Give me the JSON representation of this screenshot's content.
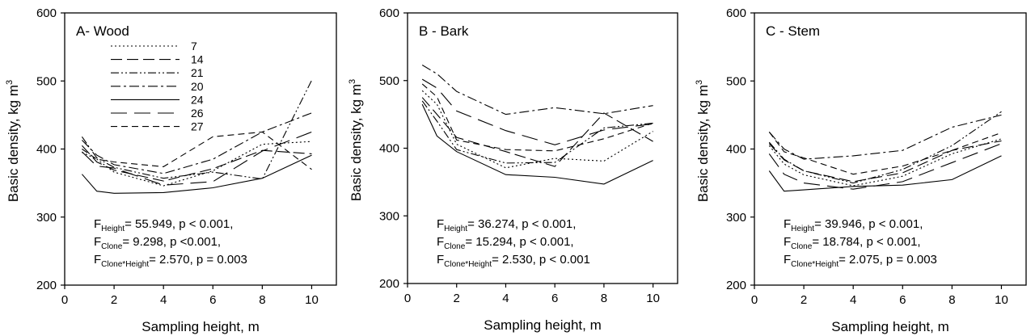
{
  "chart_data": [
    {
      "type": "line",
      "title": "A- Wood",
      "xlabel": "Sampling height, m",
      "ylabel": "Basic density, kg m",
      "ylabel_sup": "3",
      "xlim": [
        0,
        11
      ],
      "ylim": [
        200,
        600
      ],
      "xticks": [
        "0",
        "2",
        "4",
        "6",
        "8",
        "10"
      ],
      "yticks": [
        "200",
        "300",
        "400",
        "500",
        "600"
      ],
      "legend": "top-left",
      "stats": [
        {
          "pre": "F",
          "sub": "Height",
          "post": "= 55.949, p < 0.001,"
        },
        {
          "pre": "F",
          "sub": "Clone",
          "post": "= 9.298, p  <0.001,"
        },
        {
          "pre": "F",
          "sub": "Clone*Height",
          "post": "= 2.570, p = 0.003"
        }
      ],
      "x": [
        0.7,
        1.3,
        2,
        4,
        6,
        8,
        10
      ],
      "series": [
        {
          "name": "7",
          "values": [
            395,
            385,
            366,
            346,
            368,
            407,
            411
          ]
        },
        {
          "name": "14",
          "values": [
            405,
            381,
            369,
            353,
            371,
            398,
            393
          ]
        },
        {
          "name": "21",
          "values": [
            418,
            387,
            373,
            357,
            366,
            356,
            501
          ]
        },
        {
          "name": "20",
          "values": [
            413,
            391,
            377,
            364,
            385,
            425,
            453
          ]
        },
        {
          "name": "24",
          "values": [
            363,
            338,
            335,
            336,
            343,
            357,
            391
          ]
        },
        {
          "name": "26",
          "values": [
            396,
            375,
            372,
            347,
            352,
            397,
            425
          ]
        },
        {
          "name": "27",
          "values": [
            400,
            385,
            381,
            374,
            418,
            425,
            370
          ]
        }
      ]
    },
    {
      "type": "line",
      "title": "B - Bark",
      "xlabel": "Sampling height, m",
      "ylabel": "Basic density, kg m",
      "ylabel_sup": "3",
      "xlim": [
        0,
        11
      ],
      "ylim": [
        200,
        600
      ],
      "xticks": [
        "0",
        "2",
        "4",
        "6",
        "8",
        "10"
      ],
      "yticks": [
        "200",
        "300",
        "400",
        "500",
        "600"
      ],
      "stats": [
        {
          "pre": "F",
          "sub": "Height",
          "post": "= 36.274, p < 0.001,"
        },
        {
          "pre": "F",
          "sub": "Clone",
          "post": "= 15.294, p < 0.001,"
        },
        {
          "pre": "F",
          "sub": "Clone*Height",
          "post": "= 2.530, p < 0.001"
        }
      ],
      "x": [
        0.6,
        1.2,
        2,
        4,
        6,
        8,
        10
      ],
      "series": [
        {
          "name": "7",
          "values": [
            485,
            465,
            406,
            371,
            385,
            381,
            425
          ]
        },
        {
          "name": "14",
          "values": [
            475,
            450,
            416,
            395,
            373,
            452,
            410
          ]
        },
        {
          "name": "21",
          "values": [
            470,
            440,
            398,
            378,
            379,
            430,
            437
          ]
        },
        {
          "name": "20",
          "values": [
            523,
            510,
            484,
            450,
            460,
            451,
            463
          ]
        },
        {
          "name": "24",
          "values": [
            465,
            418,
            395,
            361,
            357,
            347,
            382
          ]
        },
        {
          "name": "26",
          "values": [
            502,
            489,
            455,
            426,
            405,
            427,
            436
          ]
        },
        {
          "name": "27",
          "values": [
            495,
            476,
            412,
            398,
            396,
            414,
            437
          ]
        }
      ]
    },
    {
      "type": "line",
      "title": "C - Stem",
      "xlabel": "Sampling height, m",
      "ylabel": "Basic density, kg m",
      "ylabel_sup": "3",
      "xlim": [
        0,
        11
      ],
      "ylim": [
        200,
        600
      ],
      "xticks": [
        "0",
        "2",
        "4",
        "6",
        "8",
        "10"
      ],
      "yticks": [
        "200",
        "300",
        "400",
        "500",
        "600"
      ],
      "stats": [
        {
          "pre": "F",
          "sub": "Height",
          "post": "= 39.946, p < 0.001,"
        },
        {
          "pre": "F",
          "sub": "Clone",
          "post": "= 18.784, p < 0.001,"
        },
        {
          "pre": "F",
          "sub": "Clone*Height",
          "post": "= 2.075, p = 0.003"
        }
      ],
      "x": [
        0.6,
        1.2,
        2,
        4,
        6,
        8,
        10
      ],
      "series": [
        {
          "name": "7",
          "values": [
            405,
            378,
            362,
            346,
            360,
            393,
            415
          ]
        },
        {
          "name": "14",
          "values": [
            408,
            384,
            368,
            352,
            365,
            398,
            412
          ]
        },
        {
          "name": "21",
          "values": [
            410,
            385,
            368,
            350,
            370,
            405,
            455
          ]
        },
        {
          "name": "20",
          "values": [
            425,
            400,
            385,
            390,
            398,
            432,
            450
          ]
        },
        {
          "name": "24",
          "values": [
            368,
            338,
            340,
            345,
            347,
            355,
            390
          ]
        },
        {
          "name": "26",
          "values": [
            393,
            363,
            350,
            341,
            352,
            380,
            408
          ]
        },
        {
          "name": "27",
          "values": [
            425,
            396,
            387,
            363,
            375,
            398,
            424
          ]
        }
      ]
    }
  ],
  "legend_dashes": [
    "2,3",
    "14,6",
    "10,3,2,3,2,3",
    "12,4,3,4",
    "",
    "20,9",
    "8,5"
  ]
}
